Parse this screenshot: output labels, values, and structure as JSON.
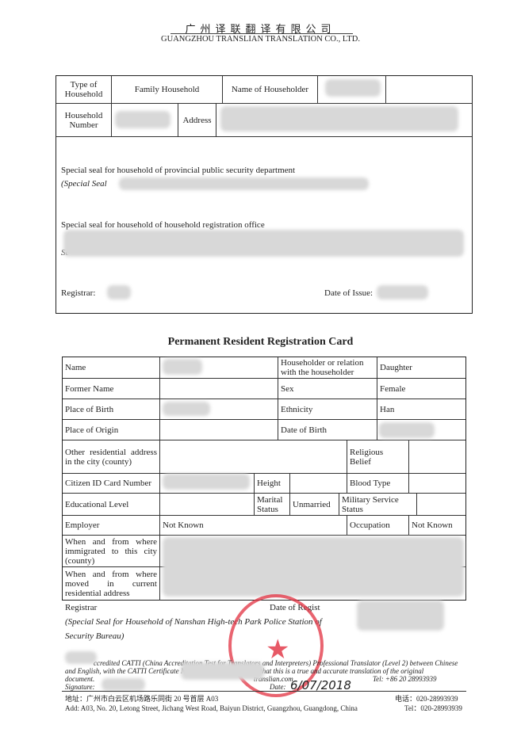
{
  "header": {
    "company_cn": "广州译联翻译有限公司",
    "company_en": "GUANGZHOU TRANSLIAN TRANSLATION CO., LTD."
  },
  "household": {
    "type_label": "Type of Household",
    "type_value": "Family Household",
    "householder_label": "Name of Householder",
    "number_label": "Household Number",
    "address_label": "Address",
    "seal_provincial": "Special seal for household of provincial public security department",
    "seal_provincial_note": "(Special Seal",
    "seal_office": "Special seal for household of household registration office",
    "seal_office_note": "Se",
    "registrar_label": "Registrar:",
    "issue_label": "Date of Issue:"
  },
  "card": {
    "title": "Permanent Resident Registration Card",
    "name_label": "Name",
    "relation_label": "Householder or relation with the householder",
    "relation_value": "Daughter",
    "former_name_label": "Former Name",
    "sex_label": "Sex",
    "sex_value": "Female",
    "birthplace_label": "Place of Birth",
    "ethnicity_label": "Ethnicity",
    "ethnicity_value": "Han",
    "origin_label": "Place of Origin",
    "dob_label": "Date of Birth",
    "other_address_label": "Other residential address in the city (county)",
    "religion_label": "Religious Belief",
    "id_label": "Citizen ID Card Number",
    "height_label": "Height",
    "blood_label": "Blood Type",
    "education_label": "Educational Level",
    "marital_label": "Marital Status",
    "marital_value": "Unmarried",
    "military_label": "Military Service Status",
    "employer_label": "Employer",
    "employer_value": "Not Known",
    "occupation_label": "Occupation",
    "occupation_value": "Not Known",
    "immigrated_label": "When and from where immigrated to this city (county)",
    "moved_label": "When and from where moved in current residential address",
    "registrar_label": "Registrar",
    "reg_date_label": "Date of Regist",
    "seal_note": "(Special Seal for Household of Nanshan High-tech Park Police Station of",
    "seal_note2": "Security Bureau)"
  },
  "footer": {
    "statement1": "ccredited CATTI (China Accreditation Test for Translators and Interpreters) Professional Translator (Level 2) between Chinese",
    "statement2": "and English, with the CATTI Certificate N",
    "statement2b": "confirm that this is a true and accurate translation of the original",
    "statement3": "document.",
    "email": "translian.com",
    "tel_en": "Tel: +86 20 28993939",
    "signature_label": "Signature:",
    "date_label": "Date:",
    "date_value": "6/07/2018",
    "address_cn": "地址：广州市白云区机场路乐同街 20 号首层 A03",
    "tel_cn": "电话：020-28993939",
    "address_en": "Add: A03, No. 20, Letong Street, Jichang West Road, Baiyun District, Guangzhou, Guangdong, China",
    "tel_en2": "Tel：020-28993939",
    "seal_text": "GUANGZHOU TRANSLIAN TRANSLATION 广州译联翻译有限公司 翻译专用章"
  },
  "colors": {
    "seal": "#e23040"
  }
}
